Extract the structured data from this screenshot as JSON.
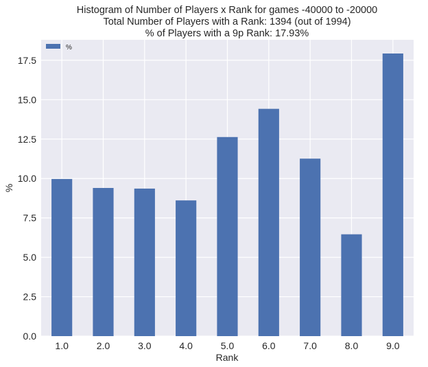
{
  "chart_data": {
    "type": "bar",
    "title_lines": [
      "Histogram of Number of Players x Rank for games -40000 to -20000",
      "Total Number of Players with a Rank: 1394 (out of 1994)",
      "% of Players with a 9p Rank: 17.93%"
    ],
    "xlabel": "Rank",
    "ylabel": "%",
    "categories": [
      "1.0",
      "2.0",
      "3.0",
      "4.0",
      "5.0",
      "6.0",
      "7.0",
      "8.0",
      "9.0"
    ],
    "series": [
      {
        "name": "%",
        "values": [
          9.97,
          9.4,
          9.36,
          8.61,
          12.63,
          14.42,
          11.26,
          6.46,
          17.93
        ]
      }
    ],
    "ylim": [
      0,
      18.8
    ],
    "yticks": [
      "0.0",
      "2.5",
      "5.0",
      "7.5",
      "10.0",
      "12.5",
      "15.0",
      "17.5"
    ],
    "ytick_values": [
      0,
      2.5,
      5,
      7.5,
      10,
      12.5,
      15,
      17.5
    ],
    "grid": true,
    "legend_position": "upper-left",
    "colors": {
      "bar": "#4c72b0",
      "background": "#eaeaf2",
      "grid": "#ffffff",
      "text": "#262626"
    }
  }
}
